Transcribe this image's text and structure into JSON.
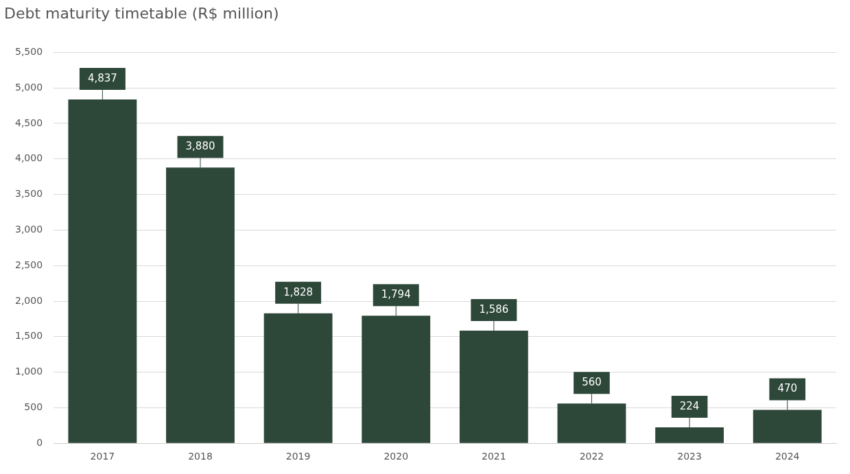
{
  "chart_data": {
    "type": "bar",
    "title": "Debt maturity timetable (R$ million)",
    "categories": [
      "2017",
      "2018",
      "2019",
      "2020",
      "2021",
      "2022",
      "2023",
      "2024"
    ],
    "values": [
      4837,
      3880,
      1828,
      1794,
      1586,
      560,
      224,
      470
    ],
    "value_labels": [
      "4,837",
      "3,880",
      "1,828",
      "1,794",
      "1,586",
      "560",
      "224",
      "470"
    ],
    "color": "#2d4739",
    "ylim": [
      0,
      5500
    ],
    "yticks": [
      0,
      500,
      {
        "value": 1000,
        "label": "1,000"
      },
      {
        "value": 1500,
        "label": "1,500"
      },
      {
        "value": 2000,
        "label": "2,000"
      },
      {
        "value": 2500,
        "label": "2,500"
      },
      {
        "value": 3000,
        "label": "3,000"
      },
      {
        "value": 3500,
        "label": "3,500"
      },
      {
        "value": 4000,
        "label": "4,000"
      },
      {
        "value": 4500,
        "label": "4,500"
      },
      {
        "value": 5000,
        "label": "5,000"
      },
      {
        "value": 5500,
        "label": "5,500"
      }
    ],
    "grid": "y"
  }
}
